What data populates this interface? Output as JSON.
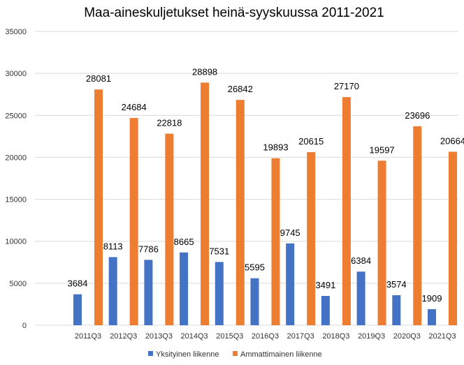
{
  "chart_data": {
    "type": "bar",
    "title": "Maa-aineskuljetukset heinä-syyskuussa 2011-2021",
    "xlabel": "",
    "ylabel": "",
    "categories": [
      "2011Q3",
      "2012Q3",
      "2013Q3",
      "2014Q3",
      "2015Q3",
      "2016Q3",
      "2017Q3",
      "2018Q3",
      "2019Q3",
      "2020Q3",
      "2021Q3"
    ],
    "series": [
      {
        "name": "Yksityinen liikenne",
        "color": "#4472c4",
        "values": [
          3684,
          8113,
          7786,
          8665,
          7531,
          5595,
          9745,
          3491,
          6384,
          3574,
          1909
        ]
      },
      {
        "name": "Ammattimainen liikenne",
        "color": "#ed7d31",
        "values": [
          28081,
          24684,
          22818,
          28898,
          26842,
          19893,
          20615,
          27170,
          19597,
          23696,
          20664
        ]
      }
    ],
    "ylim": [
      0,
      35000
    ],
    "yticks": [
      "0",
      "5000",
      "10000",
      "15000",
      "20000",
      "25000",
      "30000",
      "35000"
    ],
    "grid": true,
    "legend_position": "bottom",
    "data_labels": true
  }
}
